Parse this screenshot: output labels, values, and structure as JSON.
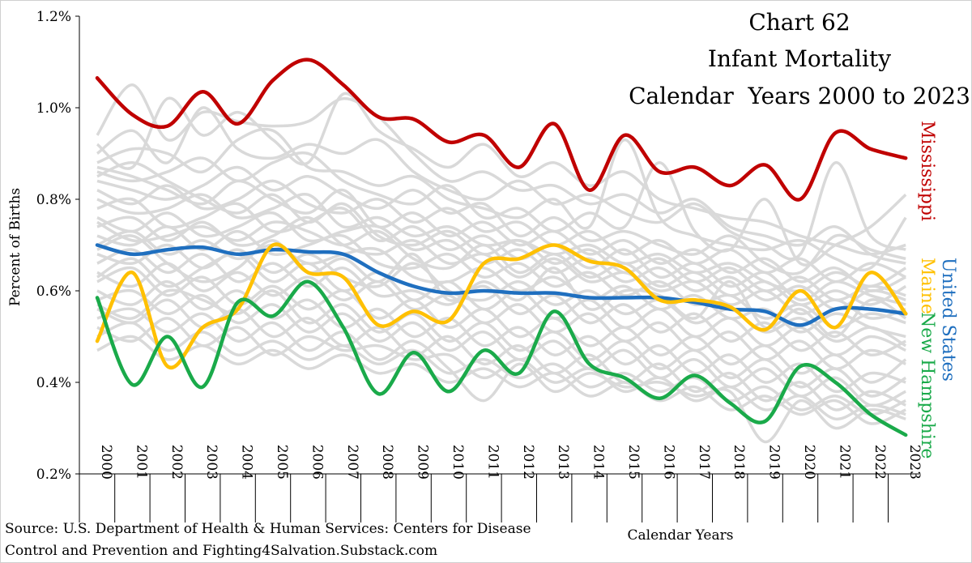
{
  "chart_data": {
    "type": "line",
    "title": [
      "Chart 62",
      "Infant Mortality",
      "Calendar  Years 2000 to 2023"
    ],
    "xlabel": "Calendar Years",
    "ylabel": "Percent of Births",
    "source": [
      "Source: U.S. Department of Health & Human Services: Centers for Disease",
      "Control and Prevention and Fighting4Salvation.Substack.com"
    ],
    "x": [
      "2000",
      "2001",
      "2002",
      "2003",
      "2004",
      "2005",
      "2006",
      "2007",
      "2008",
      "2009",
      "2010",
      "2011",
      "2012",
      "2013",
      "2014",
      "2015",
      "2016",
      "2017",
      "2018",
      "2019",
      "2020",
      "2021",
      "2022",
      "2023"
    ],
    "ylim": [
      0.2,
      1.2
    ],
    "yticks": [
      "0.2%",
      "0.4%",
      "0.6%",
      "0.8%",
      "1.0%",
      "1.2%"
    ],
    "ytick_values": [
      0.2,
      0.4,
      0.6,
      0.8,
      1.0,
      1.2
    ],
    "grid": false,
    "series": [
      {
        "name": "Mississippi",
        "color": "#c00000",
        "labeled": true,
        "values": [
          1.065,
          0.985,
          0.96,
          1.035,
          0.965,
          1.06,
          1.105,
          1.05,
          0.98,
          0.975,
          0.925,
          0.94,
          0.87,
          0.965,
          0.82,
          0.94,
          0.86,
          0.87,
          0.83,
          0.875,
          0.8,
          0.945,
          0.91,
          0.89
        ]
      },
      {
        "name": "United States",
        "color": "#1f6fbf",
        "labeled": true,
        "values": [
          0.7,
          0.68,
          0.69,
          0.695,
          0.68,
          0.69,
          0.685,
          0.68,
          0.64,
          0.61,
          0.595,
          0.6,
          0.595,
          0.595,
          0.585,
          0.585,
          0.585,
          0.575,
          0.56,
          0.555,
          0.525,
          0.56,
          0.56,
          0.55
        ]
      },
      {
        "name": "Maine",
        "color": "#ffc000",
        "labeled": true,
        "values": [
          0.49,
          0.64,
          0.435,
          0.52,
          0.56,
          0.7,
          0.64,
          0.63,
          0.525,
          0.555,
          0.535,
          0.66,
          0.67,
          0.7,
          0.665,
          0.65,
          0.58,
          0.58,
          0.565,
          0.515,
          0.6,
          0.52,
          0.64,
          0.55
        ]
      },
      {
        "name": "New Hampshire",
        "color": "#1aaa4a",
        "labeled": true,
        "values": [
          0.585,
          0.395,
          0.5,
          0.39,
          0.575,
          0.545,
          0.62,
          0.52,
          0.375,
          0.465,
          0.38,
          0.47,
          0.42,
          0.555,
          0.44,
          0.41,
          0.365,
          0.415,
          0.355,
          0.315,
          0.435,
          0.4,
          0.33,
          0.285
        ]
      }
    ],
    "background_series_color": "#d9d9d9",
    "background_series": [
      [
        0.94,
        1.05,
        0.93,
        0.99,
        0.97,
        0.96,
        0.97,
        1.02,
        0.98,
        0.9,
        0.84,
        0.86,
        0.82,
        0.83,
        0.79,
        0.81,
        0.77,
        0.8,
        0.74,
        0.72,
        0.7,
        0.74,
        0.68,
        0.66
      ],
      [
        0.92,
        0.87,
        1.02,
        0.94,
        0.99,
        0.93,
        0.88,
        1.03,
        0.95,
        0.91,
        0.87,
        0.92,
        0.85,
        0.88,
        0.83,
        0.86,
        0.8,
        0.78,
        0.76,
        0.75,
        0.72,
        0.7,
        0.68,
        0.7
      ],
      [
        0.9,
        0.95,
        0.88,
        1.0,
        0.91,
        0.89,
        0.92,
        0.9,
        0.93,
        0.86,
        0.82,
        0.8,
        0.84,
        0.79,
        0.81,
        0.77,
        0.75,
        0.79,
        0.73,
        0.7,
        0.68,
        0.88,
        0.72,
        0.69
      ],
      [
        0.88,
        0.91,
        0.9,
        0.86,
        0.93,
        0.95,
        0.87,
        0.86,
        0.83,
        0.85,
        0.8,
        0.78,
        0.76,
        0.8,
        0.74,
        0.93,
        0.76,
        0.72,
        0.7,
        0.69,
        0.71,
        0.67,
        0.65,
        0.76
      ],
      [
        0.86,
        0.84,
        0.86,
        0.89,
        0.84,
        0.88,
        0.9,
        0.84,
        0.81,
        0.79,
        0.83,
        0.76,
        0.78,
        0.73,
        0.77,
        0.74,
        0.88,
        0.73,
        0.69,
        0.8,
        0.66,
        0.7,
        0.74,
        0.81
      ],
      [
        0.84,
        0.82,
        0.8,
        0.83,
        0.87,
        0.82,
        0.85,
        0.81,
        0.78,
        0.82,
        0.77,
        0.79,
        0.72,
        0.76,
        0.71,
        0.73,
        0.7,
        0.68,
        0.72,
        0.66,
        0.64,
        0.72,
        0.69,
        0.67
      ],
      [
        0.82,
        0.79,
        0.83,
        0.78,
        0.8,
        0.84,
        0.79,
        0.77,
        0.8,
        0.75,
        0.78,
        0.73,
        0.75,
        0.7,
        0.73,
        0.68,
        0.71,
        0.66,
        0.69,
        0.64,
        0.67,
        0.62,
        0.66,
        0.63
      ],
      [
        0.8,
        0.77,
        0.78,
        0.81,
        0.76,
        0.78,
        0.81,
        0.74,
        0.76,
        0.72,
        0.74,
        0.7,
        0.71,
        0.68,
        0.7,
        0.66,
        0.68,
        0.64,
        0.66,
        0.62,
        0.6,
        0.64,
        0.61,
        0.65
      ],
      [
        0.78,
        0.8,
        0.74,
        0.76,
        0.79,
        0.73,
        0.75,
        0.78,
        0.71,
        0.74,
        0.69,
        0.72,
        0.67,
        0.7,
        0.65,
        0.69,
        0.63,
        0.66,
        0.61,
        0.64,
        0.58,
        0.62,
        0.59,
        0.57
      ],
      [
        0.76,
        0.73,
        0.77,
        0.72,
        0.74,
        0.77,
        0.71,
        0.73,
        0.74,
        0.69,
        0.71,
        0.66,
        0.69,
        0.64,
        0.67,
        0.62,
        0.65,
        0.6,
        0.63,
        0.58,
        0.61,
        0.56,
        0.6,
        0.58
      ],
      [
        0.74,
        0.76,
        0.71,
        0.75,
        0.7,
        0.72,
        0.76,
        0.7,
        0.68,
        0.71,
        0.66,
        0.68,
        0.63,
        0.67,
        0.62,
        0.64,
        0.6,
        0.62,
        0.57,
        0.6,
        0.55,
        0.58,
        0.54,
        0.56
      ],
      [
        0.72,
        0.7,
        0.74,
        0.69,
        0.73,
        0.68,
        0.7,
        0.72,
        0.66,
        0.65,
        0.68,
        0.63,
        0.66,
        0.61,
        0.64,
        0.59,
        0.62,
        0.57,
        0.59,
        0.54,
        0.57,
        0.52,
        0.55,
        0.53
      ],
      [
        0.7,
        0.73,
        0.68,
        0.71,
        0.67,
        0.7,
        0.66,
        0.68,
        0.69,
        0.63,
        0.62,
        0.65,
        0.6,
        0.63,
        0.58,
        0.61,
        0.56,
        0.59,
        0.54,
        0.56,
        0.51,
        0.55,
        0.52,
        0.5
      ],
      [
        0.68,
        0.66,
        0.7,
        0.65,
        0.69,
        0.64,
        0.68,
        0.63,
        0.61,
        0.66,
        0.6,
        0.58,
        0.62,
        0.57,
        0.6,
        0.55,
        0.58,
        0.53,
        0.56,
        0.51,
        0.54,
        0.49,
        0.52,
        0.48
      ],
      [
        0.66,
        0.69,
        0.64,
        0.68,
        0.62,
        0.66,
        0.61,
        0.65,
        0.59,
        0.6,
        0.57,
        0.61,
        0.55,
        0.59,
        0.53,
        0.57,
        0.51,
        0.55,
        0.49,
        0.53,
        0.47,
        0.51,
        0.46,
        0.49
      ],
      [
        0.64,
        0.61,
        0.66,
        0.6,
        0.64,
        0.59,
        0.63,
        0.58,
        0.62,
        0.56,
        0.59,
        0.53,
        0.57,
        0.51,
        0.55,
        0.49,
        0.53,
        0.47,
        0.51,
        0.45,
        0.49,
        0.43,
        0.47,
        0.44
      ],
      [
        0.62,
        0.65,
        0.59,
        0.63,
        0.57,
        0.61,
        0.56,
        0.6,
        0.54,
        0.58,
        0.52,
        0.56,
        0.5,
        0.54,
        0.48,
        0.52,
        0.46,
        0.5,
        0.44,
        0.48,
        0.42,
        0.46,
        0.4,
        0.45
      ],
      [
        0.6,
        0.57,
        0.62,
        0.56,
        0.6,
        0.54,
        0.58,
        0.52,
        0.56,
        0.5,
        0.54,
        0.48,
        0.52,
        0.46,
        0.5,
        0.44,
        0.48,
        0.42,
        0.46,
        0.4,
        0.44,
        0.38,
        0.42,
        0.4
      ],
      [
        0.58,
        0.6,
        0.55,
        0.59,
        0.53,
        0.57,
        0.51,
        0.55,
        0.49,
        0.53,
        0.47,
        0.51,
        0.45,
        0.49,
        0.43,
        0.47,
        0.41,
        0.45,
        0.39,
        0.43,
        0.37,
        0.41,
        0.35,
        0.38
      ],
      [
        0.56,
        0.53,
        0.58,
        0.52,
        0.56,
        0.5,
        0.54,
        0.48,
        0.52,
        0.46,
        0.5,
        0.44,
        0.48,
        0.42,
        0.46,
        0.4,
        0.44,
        0.38,
        0.42,
        0.36,
        0.4,
        0.34,
        0.38,
        0.35
      ],
      [
        0.54,
        0.56,
        0.51,
        0.55,
        0.49,
        0.53,
        0.47,
        0.51,
        0.45,
        0.49,
        0.43,
        0.36,
        0.44,
        0.38,
        0.42,
        0.39,
        0.4,
        0.37,
        0.38,
        0.27,
        0.36,
        0.3,
        0.34,
        0.32
      ],
      [
        0.52,
        0.49,
        0.54,
        0.48,
        0.52,
        0.46,
        0.5,
        0.47,
        0.48,
        0.45,
        0.46,
        0.41,
        0.45,
        0.4,
        0.43,
        0.38,
        0.41,
        0.36,
        0.39,
        0.34,
        0.37,
        0.32,
        0.35,
        0.33
      ],
      [
        0.5,
        0.53,
        0.47,
        0.51,
        0.46,
        0.49,
        0.45,
        0.48,
        0.44,
        0.47,
        0.42,
        0.45,
        0.41,
        0.44,
        0.39,
        0.42,
        0.38,
        0.41,
        0.36,
        0.39,
        0.34,
        0.37,
        0.33,
        0.36
      ],
      [
        0.47,
        0.5,
        0.45,
        0.48,
        0.44,
        0.47,
        0.43,
        0.46,
        0.42,
        0.44,
        0.4,
        0.43,
        0.39,
        0.42,
        0.37,
        0.4,
        0.36,
        0.39,
        0.34,
        0.37,
        0.33,
        0.36,
        0.31,
        0.34
      ],
      [
        0.87,
        0.85,
        0.82,
        0.79,
        0.84,
        0.8,
        0.77,
        0.82,
        0.74,
        0.77,
        0.72,
        0.75,
        0.7,
        0.73,
        0.68,
        0.71,
        0.66,
        0.69,
        0.64,
        0.67,
        0.62,
        0.65,
        0.6,
        0.63
      ],
      [
        0.85,
        0.88,
        0.84,
        0.8,
        0.77,
        0.81,
        0.75,
        0.79,
        0.72,
        0.7,
        0.73,
        0.68,
        0.71,
        0.66,
        0.69,
        0.64,
        0.67,
        0.62,
        0.65,
        0.6,
        0.63,
        0.58,
        0.61,
        0.59
      ],
      [
        0.75,
        0.71,
        0.72,
        0.74,
        0.71,
        0.75,
        0.73,
        0.7,
        0.73,
        0.67,
        0.65,
        0.7,
        0.64,
        0.68,
        0.63,
        0.66,
        0.61,
        0.64,
        0.59,
        0.62,
        0.57,
        0.6,
        0.57,
        0.61
      ],
      [
        0.63,
        0.67,
        0.61,
        0.65,
        0.68,
        0.62,
        0.66,
        0.6,
        0.64,
        0.58,
        0.62,
        0.56,
        0.6,
        0.54,
        0.58,
        0.52,
        0.56,
        0.5,
        0.54,
        0.48,
        0.52,
        0.46,
        0.5,
        0.47
      ],
      [
        0.57,
        0.54,
        0.6,
        0.58,
        0.55,
        0.6,
        0.53,
        0.57,
        0.51,
        0.55,
        0.49,
        0.53,
        0.47,
        0.51,
        0.45,
        0.49,
        0.43,
        0.47,
        0.41,
        0.45,
        0.39,
        0.43,
        0.37,
        0.41
      ],
      [
        0.69,
        0.72,
        0.66,
        0.62,
        0.65,
        0.71,
        0.64,
        0.67,
        0.62,
        0.68,
        0.58,
        0.62,
        0.58,
        0.65,
        0.56,
        0.6,
        0.59,
        0.54,
        0.62,
        0.52,
        0.56,
        0.5,
        0.58,
        0.54
      ]
    ]
  }
}
